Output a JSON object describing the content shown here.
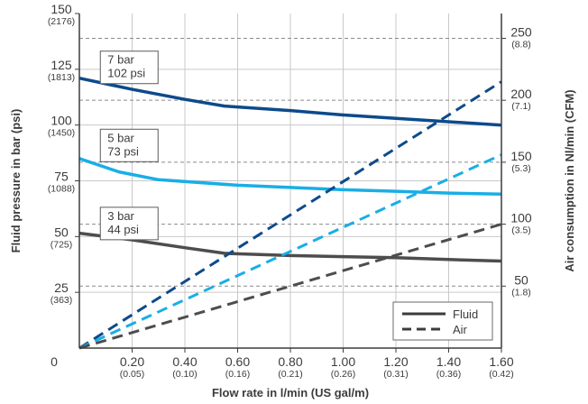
{
  "chart_data": {
    "type": "line",
    "title": "",
    "xlabel": "Flow rate in l/min (US gal/m)",
    "ylabel_left": "Fluid pressure in bar (psi)",
    "ylabel_right": "Air consumption in Nl/min (CFM)",
    "xlim": [
      0,
      1.6
    ],
    "ylim_left": [
      0,
      150
    ],
    "ylim_right": [
      0,
      270
    ],
    "grid": true,
    "legend_position": "bottom-right",
    "x_ticks": [
      {
        "value": 0,
        "main": "0",
        "sub": ""
      },
      {
        "value": 0.2,
        "main": "0.20",
        "sub": "(0.05)"
      },
      {
        "value": 0.4,
        "main": "0.40",
        "sub": "(0.10)"
      },
      {
        "value": 0.6,
        "main": "0.60",
        "sub": "(0.16)"
      },
      {
        "value": 0.8,
        "main": "0.80",
        "sub": "(0.21)"
      },
      {
        "value": 1.0,
        "main": "1.00",
        "sub": "(0.26)"
      },
      {
        "value": 1.2,
        "main": "1.20",
        "sub": "(0.31)"
      },
      {
        "value": 1.4,
        "main": "1.40",
        "sub": "(0.36)"
      },
      {
        "value": 1.6,
        "main": "1.60",
        "sub": "(0.42)"
      }
    ],
    "y_left_ticks": [
      {
        "value": 25,
        "main": "25",
        "sub": "(363)"
      },
      {
        "value": 50,
        "main": "50",
        "sub": "(725)"
      },
      {
        "value": 75,
        "main": "75",
        "sub": "(1088)"
      },
      {
        "value": 100,
        "main": "100",
        "sub": "(1450)"
      },
      {
        "value": 125,
        "main": "125",
        "sub": "(1813)"
      },
      {
        "value": 150,
        "main": "150",
        "sub": "(2176)"
      }
    ],
    "y_right_ticks": [
      {
        "value": 50,
        "main": "50",
        "sub": "(1.8)"
      },
      {
        "value": 100,
        "main": "100",
        "sub": "(3.5)"
      },
      {
        "value": 150,
        "main": "150",
        "sub": "(5.3)"
      },
      {
        "value": 200,
        "main": "200",
        "sub": "(7.1)"
      },
      {
        "value": 250,
        "main": "250",
        "sub": "(8.8)"
      }
    ],
    "series": [
      {
        "label": "7 bar\n102 psi",
        "color": "#0d4a8b",
        "axis": "left",
        "kind": "fluid",
        "x": [
          0,
          0.2,
          0.4,
          0.55,
          0.8,
          1.0,
          1.2,
          1.4,
          1.6
        ],
        "y": [
          121,
          116,
          111.5,
          108.5,
          106.5,
          104.5,
          103,
          101.5,
          100
        ]
      },
      {
        "label": "5 bar\n73 psi",
        "color": "#19aee6",
        "axis": "left",
        "kind": "fluid",
        "x": [
          0,
          0.15,
          0.3,
          0.6,
          0.8,
          1.0,
          1.2,
          1.4,
          1.6
        ],
        "y": [
          85,
          79,
          75.5,
          73,
          72,
          71,
          70.3,
          69.5,
          69
        ]
      },
      {
        "label": "3 bar\n44 psi",
        "color": "#4d4d4f",
        "axis": "left",
        "kind": "fluid",
        "x": [
          0,
          0.2,
          0.4,
          0.55,
          0.8,
          1.0,
          1.2,
          1.4,
          1.6
        ],
        "y": [
          51.5,
          48.5,
          45,
          42.5,
          41.5,
          41,
          40.5,
          39.7,
          39
        ]
      },
      {
        "name": "7 bar air",
        "color": "#0d4a8b",
        "axis": "right",
        "kind": "air",
        "x": [
          0,
          1.6
        ],
        "y": [
          0,
          215
        ]
      },
      {
        "name": "5 bar air",
        "color": "#19aee6",
        "axis": "right",
        "kind": "air",
        "x": [
          0,
          1.6
        ],
        "y": [
          0,
          156
        ]
      },
      {
        "name": "3 bar air",
        "color": "#4d4d4f",
        "axis": "right",
        "kind": "air",
        "x": [
          0,
          1.6
        ],
        "y": [
          0,
          100
        ]
      }
    ],
    "label_anchor_x": [
      0.1,
      0.1,
      0.1
    ],
    "label_anchor_y": [
      121,
      86,
      51
    ],
    "legend": [
      {
        "label": "Fluid",
        "style": "solid",
        "color": "#3c3c3c"
      },
      {
        "label": "Air",
        "style": "dashed",
        "color": "#3c3c3c"
      }
    ]
  }
}
